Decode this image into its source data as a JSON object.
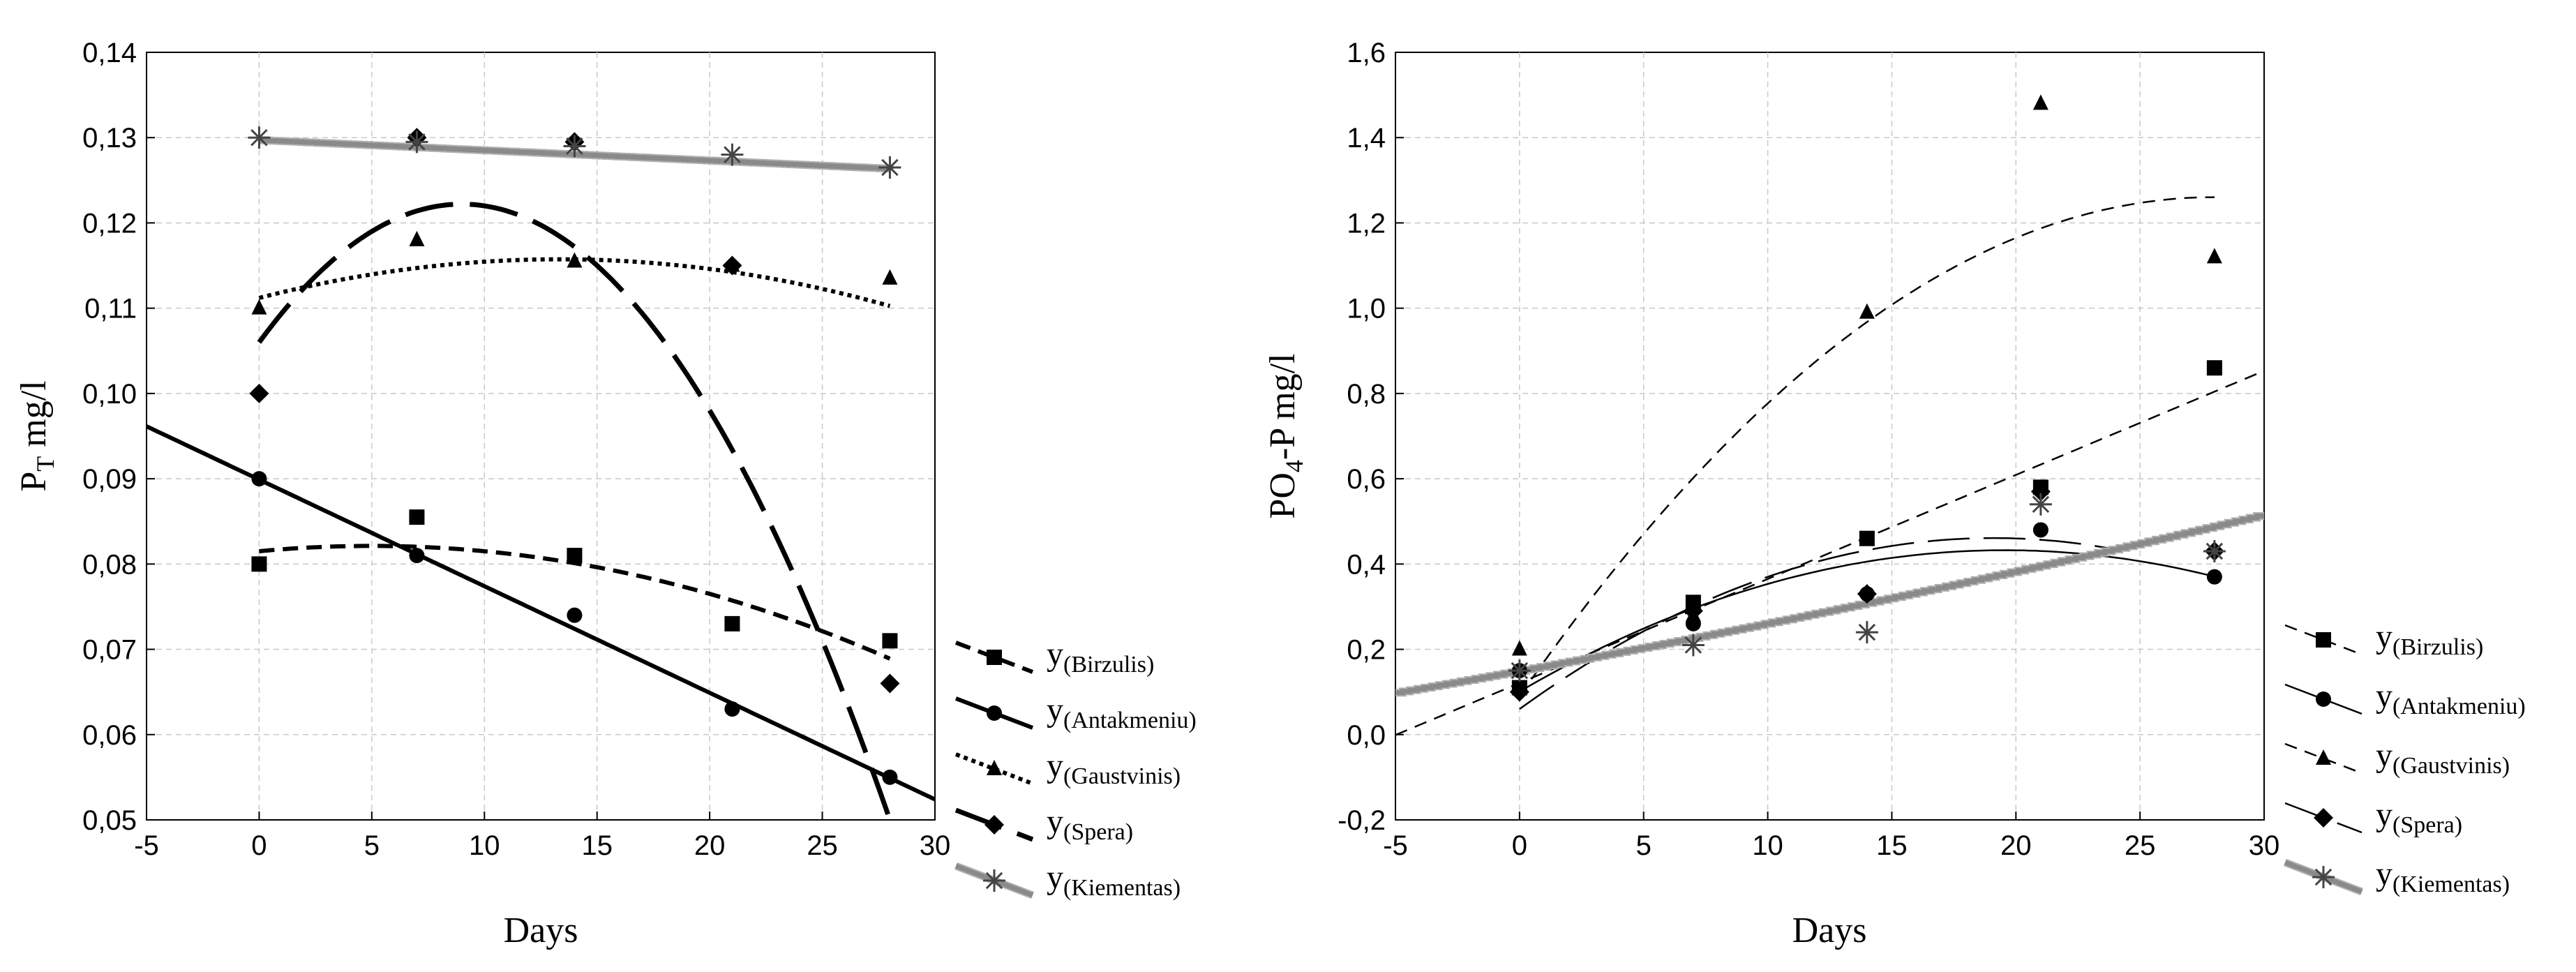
{
  "chart_data": [
    {
      "type": "scatter",
      "xlabel": "Days",
      "ylabel_main": "P",
      "ylabel_sub": "T",
      "ylabel_rest": " mg/l",
      "xlim": [
        -5,
        30
      ],
      "ylim": [
        0.05,
        0.14
      ],
      "xticks": [
        {
          "v": -5,
          "label": "-5"
        },
        {
          "v": 0,
          "label": "0"
        },
        {
          "v": 5,
          "label": "5"
        },
        {
          "v": 10,
          "label": "10"
        },
        {
          "v": 15,
          "label": "15"
        },
        {
          "v": 20,
          "label": "20"
        },
        {
          "v": 25,
          "label": "25"
        },
        {
          "v": 30,
          "label": "30"
        }
      ],
      "yticks": [
        {
          "v": 0.05,
          "label": "0,05"
        },
        {
          "v": 0.06,
          "label": "0,06"
        },
        {
          "v": 0.07,
          "label": "0,07"
        },
        {
          "v": 0.08,
          "label": "0,08"
        },
        {
          "v": 0.09,
          "label": "0,09"
        },
        {
          "v": 0.1,
          "label": "0,10"
        },
        {
          "v": 0.11,
          "label": "0,11"
        },
        {
          "v": 0.12,
          "label": "0,12"
        },
        {
          "v": 0.13,
          "label": "0,13"
        },
        {
          "v": 0.14,
          "label": "0,14"
        }
      ],
      "grid": true,
      "legend_position": "right",
      "series": [
        {
          "name": "(Birzulis)",
          "prefix": "y",
          "marker": "square",
          "line": "dash-medium",
          "color": "#000000",
          "points": [
            [
              0,
              0.08
            ],
            [
              7,
              0.0855
            ],
            [
              14,
              0.081
            ],
            [
              21,
              0.073
            ],
            [
              28,
              0.071
            ]
          ],
          "fit": {
            "kind": "poly",
            "coef": [
              0.0815,
              0.00025,
              -2.5e-05
            ],
            "x_from": 0,
            "x_to": 28
          }
        },
        {
          "name": "(Antakmeniu)",
          "prefix": "y",
          "marker": "circle",
          "line": "solid",
          "color": "#000000",
          "points": [
            [
              0,
              0.09
            ],
            [
              7,
              0.081
            ],
            [
              14,
              0.074
            ],
            [
              21,
              0.063
            ],
            [
              28,
              0.055
            ]
          ],
          "fit": {
            "kind": "poly",
            "coef": [
              0.0899,
              -0.00125,
              0
            ],
            "x_from": -5,
            "x_to": 30
          }
        },
        {
          "name": "(Gaustvinis)",
          "prefix": "y",
          "marker": "triangle",
          "line": "dotted",
          "color": "#000000",
          "points": [
            [
              0,
              0.11
            ],
            [
              7,
              0.118
            ],
            [
              14,
              0.1155
            ],
            [
              21,
              0.115
            ],
            [
              28,
              0.1135
            ]
          ],
          "fit": {
            "kind": "poly",
            "coef": [
              0.1112,
              0.00068,
              -2.55e-05
            ],
            "x_from": 0,
            "x_to": 28
          }
        },
        {
          "name": "(Spera)",
          "prefix": "y",
          "marker": "diamond",
          "line": "long-dash",
          "color": "#000000",
          "points": [
            [
              0,
              0.1
            ],
            [
              7,
              0.13
            ],
            [
              14,
              0.1295
            ],
            [
              21,
              0.115
            ],
            [
              28,
              0.066
            ]
          ],
          "fit": {
            "kind": "poly",
            "coef": [
              0.106,
              0.0036,
              -0.0002
            ],
            "x_from": 0,
            "x_to": 28
          }
        },
        {
          "name": "(Kiementas)",
          "prefix": "y",
          "marker": "asterisk",
          "line": "gray-step",
          "color": "#888888",
          "points": [
            [
              0,
              0.13
            ],
            [
              7,
              0.1295
            ],
            [
              14,
              0.129
            ],
            [
              21,
              0.128
            ],
            [
              28,
              0.1265
            ]
          ],
          "fit": {
            "kind": "poly",
            "coef": [
              0.1297,
              -0.00012,
              0
            ],
            "x_from": 0,
            "x_to": 28
          }
        }
      ]
    },
    {
      "type": "scatter",
      "xlabel": "Days",
      "ylabel_main": "PO",
      "ylabel_sub": "4",
      "ylabel_rest": "-P mg/l",
      "xlim": [
        -5,
        30
      ],
      "ylim": [
        -0.2,
        1.6
      ],
      "xticks": [
        {
          "v": -5,
          "label": "-5"
        },
        {
          "v": 0,
          "label": "0"
        },
        {
          "v": 5,
          "label": "5"
        },
        {
          "v": 10,
          "label": "10"
        },
        {
          "v": 15,
          "label": "15"
        },
        {
          "v": 20,
          "label": "20"
        },
        {
          "v": 25,
          "label": "25"
        },
        {
          "v": 30,
          "label": "30"
        }
      ],
      "yticks": [
        {
          "v": -0.2,
          "label": "-0,2"
        },
        {
          "v": 0.0,
          "label": "0,0"
        },
        {
          "v": 0.2,
          "label": "0,2"
        },
        {
          "v": 0.4,
          "label": "0,4"
        },
        {
          "v": 0.6,
          "label": "0,6"
        },
        {
          "v": 0.8,
          "label": "0,8"
        },
        {
          "v": 1.0,
          "label": "1,0"
        },
        {
          "v": 1.2,
          "label": "1,2"
        },
        {
          "v": 1.4,
          "label": "1,4"
        },
        {
          "v": 1.6,
          "label": "1,6"
        }
      ],
      "grid": true,
      "legend_position": "right",
      "series": [
        {
          "name": "(Birzulis)",
          "prefix": "y",
          "marker": "square",
          "line": "thin-dash",
          "color": "#000000",
          "points": [
            [
              0,
              0.11
            ],
            [
              7,
              0.31
            ],
            [
              14,
              0.46
            ],
            [
              21,
              0.58
            ],
            [
              28,
              0.86
            ]
          ],
          "fit": {
            "kind": "poly",
            "coef": [
              0.121,
              0.0244,
              0
            ],
            "x_from": -5,
            "x_to": 30
          }
        },
        {
          "name": "(Antakmeniu)",
          "prefix": "y",
          "marker": "circle",
          "line": "thin-solid",
          "color": "#000000",
          "points": [
            [
              0,
              0.15
            ],
            [
              7,
              0.26
            ],
            [
              14,
              0.33
            ],
            [
              21,
              0.48
            ],
            [
              28,
              0.37
            ]
          ],
          "fit": {
            "kind": "poly",
            "coef": [
              0.101,
              0.0339,
              -0.000867
            ],
            "x_from": 0,
            "x_to": 28
          }
        },
        {
          "name": "(Gaustvinis)",
          "prefix": "y",
          "marker": "triangle",
          "line": "thin-dash",
          "color": "#000000",
          "points": [
            [
              0,
              0.2
            ],
            [
              7,
              0.28
            ],
            [
              14,
              0.99
            ],
            [
              21,
              1.48
            ],
            [
              28,
              1.12
            ]
          ],
          "fit": {
            "kind": "poly",
            "coef": [
              0.09,
              0.0836,
              -0.001493
            ],
            "x_from": 0,
            "x_to": 28
          }
        },
        {
          "name": "(Spera)",
          "prefix": "y",
          "marker": "diamond",
          "line": "thin-long-dash",
          "color": "#000000",
          "points": [
            [
              0,
              0.1
            ],
            [
              7,
              0.29
            ],
            [
              14,
              0.33
            ],
            [
              21,
              0.57
            ],
            [
              28,
              0.43
            ]
          ],
          "fit": {
            "kind": "poly",
            "coef": [
              0.06,
              0.042,
              -0.0011
            ],
            "x_from": 0,
            "x_to": 24
          }
        },
        {
          "name": "(Kiementas)",
          "prefix": "y",
          "marker": "asterisk",
          "line": "gray-step",
          "color": "#888888",
          "points": [
            [
              0,
              0.15
            ],
            [
              7,
              0.21
            ],
            [
              14,
              0.24
            ],
            [
              21,
              0.54
            ],
            [
              28,
              0.43
            ]
          ],
          "fit": {
            "kind": "poly",
            "coef": [
              0.15,
              0.0106,
              5.4e-05
            ],
            "x_from": -5,
            "x_to": 30
          }
        }
      ]
    }
  ]
}
